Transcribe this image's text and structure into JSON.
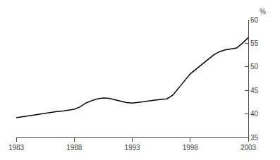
{
  "chart_data": {
    "type": "line",
    "ylabel": "%",
    "x": [
      1983,
      1983.5,
      1984,
      1984.5,
      1985,
      1985.5,
      1986,
      1986.5,
      1987,
      1987.5,
      1988,
      1988.5,
      1989,
      1989.5,
      1990,
      1990.5,
      1991,
      1991.5,
      1992,
      1992.5,
      1993,
      1993.5,
      1994,
      1994.5,
      1995,
      1995.5,
      1996,
      1996.5,
      1997,
      1997.5,
      1998,
      1998.5,
      1999,
      1999.5,
      2000,
      2000.5,
      2001,
      2001.5,
      2002,
      2002.5,
      2003
    ],
    "values": [
      39.2,
      39.4,
      39.6,
      39.8,
      40.0,
      40.2,
      40.4,
      40.5,
      40.6,
      40.8,
      41.0,
      41.5,
      42.3,
      42.8,
      43.2,
      43.4,
      43.3,
      43.0,
      42.7,
      42.4,
      42.3,
      42.4,
      42.6,
      42.8,
      43.0,
      43.1,
      43.2,
      44.0,
      45.5,
      47.0,
      48.5,
      49.5,
      50.5,
      51.5,
      52.5,
      53.2,
      53.6,
      53.8,
      54.0,
      55.0,
      56.2
    ],
    "color": "#000000",
    "xlim": [
      1983,
      2003
    ],
    "xticks": [
      1983,
      1988,
      1993,
      1998,
      2003
    ],
    "ylim": [
      35,
      60
    ],
    "yticks": [
      35,
      40,
      45,
      50,
      55,
      60
    ],
    "grid": false
  }
}
